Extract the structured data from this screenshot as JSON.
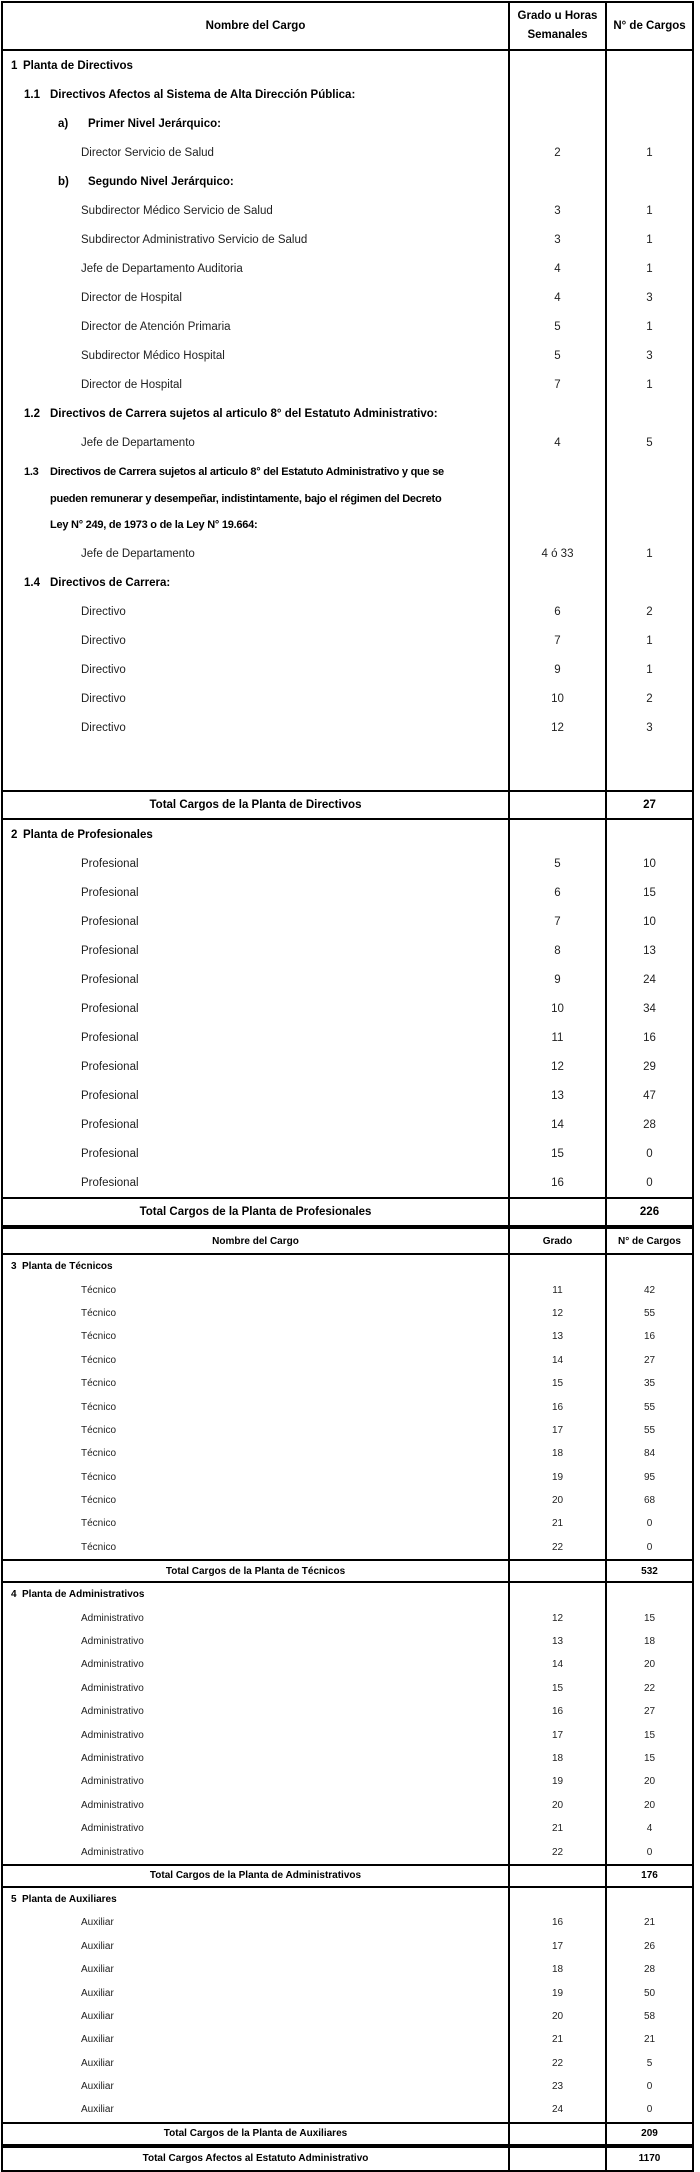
{
  "page": {
    "background": "#ffffff",
    "text_color": "#000000",
    "border_color": "#000000"
  },
  "table": {
    "part1_header": {
      "name_col": "Nombre del Cargo",
      "grade_col_line1": "Grado u Horas",
      "grade_col_line2": "Semanales",
      "count_col": "N° de Cargos"
    },
    "part2_header": {
      "name_col": "Nombre del Cargo",
      "grade_col": "Grado",
      "count_col": "N° de Cargos"
    },
    "rows": [
      {
        "kind": "section",
        "part": "a",
        "marker": "1",
        "label": "Planta de Directivos"
      },
      {
        "kind": "subsection",
        "part": "a",
        "marker": "1.1",
        "label": "Directivos Afectos al Sistema de Alta Dirección Pública:"
      },
      {
        "kind": "letter",
        "part": "a",
        "marker": "a)",
        "label": "Primer Nivel Jerárquico:"
      },
      {
        "kind": "job",
        "part": "a",
        "label": "Director Servicio de Salud",
        "grado": "2",
        "cargos": "1"
      },
      {
        "kind": "letter",
        "part": "a",
        "marker": "b)",
        "label": "Segundo Nivel Jerárquico:"
      },
      {
        "kind": "job",
        "part": "a",
        "label": "Subdirector Médico Servicio de Salud",
        "grado": "3",
        "cargos": "1"
      },
      {
        "kind": "job",
        "part": "a",
        "label": "Subdirector Administrativo Servicio de Salud",
        "grado": "3",
        "cargos": "1"
      },
      {
        "kind": "job",
        "part": "a",
        "label": "Jefe de Departamento Auditoria",
        "grado": "4",
        "cargos": "1"
      },
      {
        "kind": "job",
        "part": "a",
        "label": "Director de Hospital",
        "grado": "4",
        "cargos": "3"
      },
      {
        "kind": "job",
        "part": "a",
        "label": "Director de Atención Primaria",
        "grado": "5",
        "cargos": "1"
      },
      {
        "kind": "job",
        "part": "a",
        "label": "Subdirector Médico Hospital",
        "grado": "5",
        "cargos": "3"
      },
      {
        "kind": "job",
        "part": "a",
        "label": "Director de Hospital",
        "grado": "7",
        "cargos": "1"
      },
      {
        "kind": "subsection",
        "part": "a",
        "marker": "1.2",
        "label": "Directivos de Carrera sujetos al articulo 8° del Estatuto Administrativo:"
      },
      {
        "kind": "job",
        "part": "a",
        "label": "Jefe de Departamento",
        "grado": "4",
        "cargos": "5"
      },
      {
        "kind": "block",
        "part": "a",
        "marker": "1.3",
        "lines": [
          "Directivos de Carrera sujetos al articulo 8° del Estatuto Administrativo y que se",
          "pueden remunerar y desempeñar, indistintamente, bajo el régimen del Decreto",
          "Ley N° 249, de 1973 o de la Ley N° 19.664:"
        ]
      },
      {
        "kind": "job",
        "part": "a",
        "label": "Jefe de Departamento",
        "grado": "4 ó 33",
        "cargos": "1"
      },
      {
        "kind": "subsection",
        "part": "a",
        "marker": "1.4",
        "label": "Directivos de Carrera:"
      },
      {
        "kind": "job",
        "part": "a",
        "label": "Directivo",
        "grado": "6",
        "cargos": "2"
      },
      {
        "kind": "job",
        "part": "a",
        "label": "Directivo",
        "grado": "7",
        "cargos": "1"
      },
      {
        "kind": "job",
        "part": "a",
        "label": "Directivo",
        "grado": "9",
        "cargos": "1"
      },
      {
        "kind": "job",
        "part": "a",
        "label": "Directivo",
        "grado": "10",
        "cargos": "2"
      },
      {
        "kind": "job",
        "part": "a",
        "label": "Directivo",
        "grado": "12",
        "cargos": "3"
      },
      {
        "kind": "spacer",
        "part": "a"
      },
      {
        "kind": "total",
        "part": "a",
        "label": "Total Cargos de la Planta de Directivos",
        "cargos": "27"
      },
      {
        "kind": "section",
        "part": "a",
        "marker": "2",
        "label": "Planta de Profesionales"
      },
      {
        "kind": "job",
        "part": "a",
        "label": "Profesional",
        "grado": "5",
        "cargos": "10"
      },
      {
        "kind": "job",
        "part": "a",
        "label": "Profesional",
        "grado": "6",
        "cargos": "15"
      },
      {
        "kind": "job",
        "part": "a",
        "label": "Profesional",
        "grado": "7",
        "cargos": "10"
      },
      {
        "kind": "job",
        "part": "a",
        "label": "Profesional",
        "grado": "8",
        "cargos": "13"
      },
      {
        "kind": "job",
        "part": "a",
        "label": "Profesional",
        "grado": "9",
        "cargos": "24"
      },
      {
        "kind": "job",
        "part": "a",
        "label": "Profesional",
        "grado": "10",
        "cargos": "34"
      },
      {
        "kind": "job",
        "part": "a",
        "label": "Profesional",
        "grado": "11",
        "cargos": "16"
      },
      {
        "kind": "job",
        "part": "a",
        "label": "Profesional",
        "grado": "12",
        "cargos": "29"
      },
      {
        "kind": "job",
        "part": "a",
        "label": "Profesional",
        "grado": "13",
        "cargos": "47"
      },
      {
        "kind": "job",
        "part": "a",
        "label": "Profesional",
        "grado": "14",
        "cargos": "28"
      },
      {
        "kind": "job",
        "part": "a",
        "label": "Profesional",
        "grado": "15",
        "cargos": "0"
      },
      {
        "kind": "job",
        "part": "a",
        "label": "Profesional",
        "grado": "16",
        "cargos": "0"
      },
      {
        "kind": "total",
        "part": "a",
        "label": "Total Cargos de la Planta de Profesionales",
        "cargos": "226"
      },
      {
        "kind": "header2",
        "part": "b"
      },
      {
        "kind": "section",
        "part": "b",
        "marker": "3",
        "label": "Planta de Técnicos"
      },
      {
        "kind": "job",
        "part": "b",
        "label": "Técnico",
        "grado": "11",
        "cargos": "42"
      },
      {
        "kind": "job",
        "part": "b",
        "label": "Técnico",
        "grado": "12",
        "cargos": "55"
      },
      {
        "kind": "job",
        "part": "b",
        "label": "Técnico",
        "grado": "13",
        "cargos": "16"
      },
      {
        "kind": "job",
        "part": "b",
        "label": "Técnico",
        "grado": "14",
        "cargos": "27"
      },
      {
        "kind": "job",
        "part": "b",
        "label": "Técnico",
        "grado": "15",
        "cargos": "35"
      },
      {
        "kind": "job",
        "part": "b",
        "label": "Técnico",
        "grado": "16",
        "cargos": "55"
      },
      {
        "kind": "job",
        "part": "b",
        "label": "Técnico",
        "grado": "17",
        "cargos": "55"
      },
      {
        "kind": "job",
        "part": "b",
        "label": "Técnico",
        "grado": "18",
        "cargos": "84"
      },
      {
        "kind": "job",
        "part": "b",
        "label": "Técnico",
        "grado": "19",
        "cargos": "95"
      },
      {
        "kind": "job",
        "part": "b",
        "label": "Técnico",
        "grado": "20",
        "cargos": "68"
      },
      {
        "kind": "job",
        "part": "b",
        "label": "Técnico",
        "grado": "21",
        "cargos": "0"
      },
      {
        "kind": "job",
        "part": "b",
        "label": "Técnico",
        "grado": "22",
        "cargos": "0"
      },
      {
        "kind": "total",
        "part": "b",
        "label": "Total Cargos de la Planta de Técnicos",
        "cargos": "532"
      },
      {
        "kind": "section",
        "part": "b",
        "marker": "4",
        "label": "Planta de Administrativos"
      },
      {
        "kind": "job",
        "part": "b",
        "label": "Administrativo",
        "grado": "12",
        "cargos": "15"
      },
      {
        "kind": "job",
        "part": "b",
        "label": "Administrativo",
        "grado": "13",
        "cargos": "18"
      },
      {
        "kind": "job",
        "part": "b",
        "label": "Administrativo",
        "grado": "14",
        "cargos": "20"
      },
      {
        "kind": "job",
        "part": "b",
        "label": "Administrativo",
        "grado": "15",
        "cargos": "22"
      },
      {
        "kind": "job",
        "part": "b",
        "label": "Administrativo",
        "grado": "16",
        "cargos": "27"
      },
      {
        "kind": "job",
        "part": "b",
        "label": "Administrativo",
        "grado": "17",
        "cargos": "15"
      },
      {
        "kind": "job",
        "part": "b",
        "label": "Administrativo",
        "grado": "18",
        "cargos": "15"
      },
      {
        "kind": "job",
        "part": "b",
        "label": "Administrativo",
        "grado": "19",
        "cargos": "20"
      },
      {
        "kind": "job",
        "part": "b",
        "label": "Administrativo",
        "grado": "20",
        "cargos": "20"
      },
      {
        "kind": "job",
        "part": "b",
        "label": "Administrativo",
        "grado": "21",
        "cargos": "4"
      },
      {
        "kind": "job",
        "part": "b",
        "label": "Administrativo",
        "grado": "22",
        "cargos": "0"
      },
      {
        "kind": "total",
        "part": "b",
        "label": "Total Cargos de la Planta de Administrativos",
        "cargos": "176"
      },
      {
        "kind": "section",
        "part": "b",
        "marker": "5",
        "label": "Planta de Auxiliares"
      },
      {
        "kind": "job",
        "part": "b",
        "label": "Auxiliar",
        "grado": "16",
        "cargos": "21"
      },
      {
        "kind": "job",
        "part": "b",
        "label": "Auxiliar",
        "grado": "17",
        "cargos": "26"
      },
      {
        "kind": "job",
        "part": "b",
        "label": "Auxiliar",
        "grado": "18",
        "cargos": "28"
      },
      {
        "kind": "job",
        "part": "b",
        "label": "Auxiliar",
        "grado": "19",
        "cargos": "50"
      },
      {
        "kind": "job",
        "part": "b",
        "label": "Auxiliar",
        "grado": "20",
        "cargos": "58"
      },
      {
        "kind": "job",
        "part": "b",
        "label": "Auxiliar",
        "grado": "21",
        "cargos": "21"
      },
      {
        "kind": "job",
        "part": "b",
        "label": "Auxiliar",
        "grado": "22",
        "cargos": "5"
      },
      {
        "kind": "job",
        "part": "b",
        "label": "Auxiliar",
        "grado": "23",
        "cargos": "0"
      },
      {
        "kind": "job",
        "part": "b",
        "label": "Auxiliar",
        "grado": "24",
        "cargos": "0"
      },
      {
        "kind": "total",
        "part": "b",
        "label": "Total Cargos de la Planta de Auxiliares",
        "cargos": "209"
      },
      {
        "kind": "grandtotal",
        "part": "b",
        "label": "Total Cargos Afectos al Estatuto Administrativo",
        "cargos": "1170"
      }
    ]
  }
}
